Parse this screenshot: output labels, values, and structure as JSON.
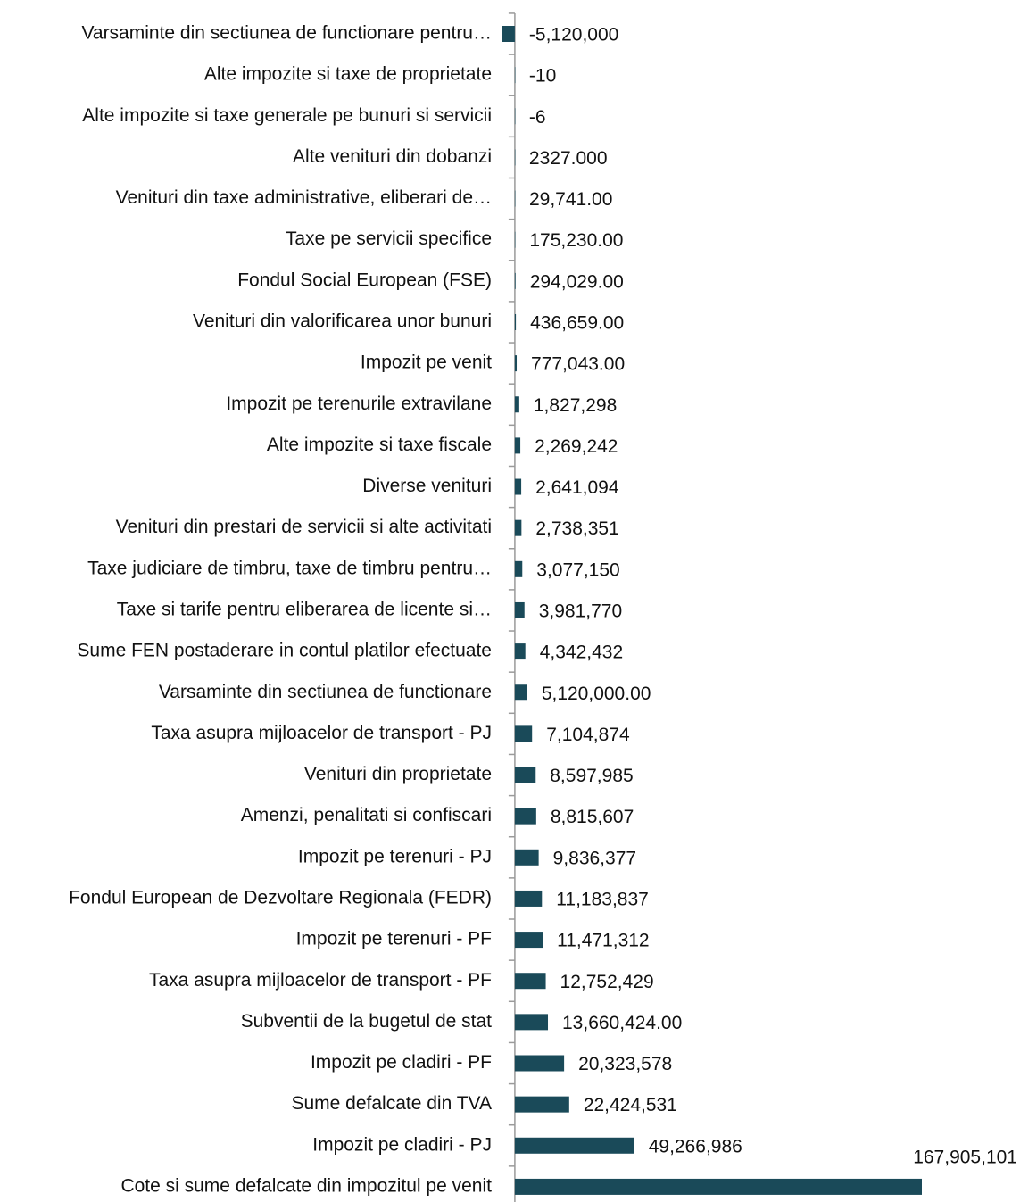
{
  "chart_data": {
    "type": "barh",
    "categories": [
      "Varsaminte din sectiunea de functionare pentru…",
      "Alte impozite si taxe de proprietate",
      "Alte impozite si taxe generale pe bunuri si servicii",
      "Alte venituri din dobanzi",
      "Venituri din taxe administrative, eliberari de…",
      "Taxe pe servicii specifice",
      "Fondul Social European (FSE)",
      "Venituri din valorificarea unor bunuri",
      "Impozit pe venit",
      "Impozit pe terenurile extravilane",
      "Alte impozite si taxe fiscale",
      "Diverse venituri",
      "Venituri din prestari de servicii si alte activitati",
      "Taxe judiciare de timbru, taxe de timbru pentru…",
      "Taxe si tarife pentru eliberarea de licente si…",
      "Sume FEN postaderare in contul platilor efectuate",
      "Varsaminte din sectiunea de functionare",
      "Taxa asupra mijloacelor de transport - PJ",
      "Venituri din proprietate",
      "Amenzi, penalitati si confiscari",
      "Impozit pe terenuri - PJ",
      "Fondul European de Dezvoltare Regionala (FEDR)",
      "Impozit pe terenuri - PF",
      "Taxa asupra mijloacelor de transport - PF",
      "Subventii de la bugetul de stat",
      "Impozit pe cladiri - PF",
      "Sume defalcate din TVA",
      "Impozit pe cladiri - PJ",
      "Cote si sume defalcate din impozitul pe venit"
    ],
    "values": [
      -5120000,
      -10,
      -6,
      2327,
      29741,
      175230,
      294029,
      436659,
      777043,
      1827298,
      2269242,
      2641094,
      2738351,
      3077150,
      3981770,
      4342432,
      5120000,
      7104874,
      8597985,
      8815607,
      9836377,
      11183837,
      11471312,
      12752429,
      13660424,
      20323578,
      22424531,
      49266986,
      167905101
    ],
    "value_labels": [
      "-5,120,000",
      "-10",
      "-6",
      "2327.000",
      "29,741.00",
      "175,230.00",
      "294,029.00",
      "436,659.00",
      "777,043.00",
      "1,827,298",
      "2,269,242",
      "2,641,094",
      "2,738,351",
      "3,077,150",
      "3,981,770",
      "4,342,432",
      "5,120,000.00",
      "7,104,874",
      "8,597,985",
      "8,815,607",
      "9,836,377",
      "11,183,837",
      "11,471,312",
      "12,752,429",
      "13,660,424.00",
      "20,323,578",
      "22,424,531",
      "49,266,986",
      "167,905,101"
    ],
    "color": "#1a4a59",
    "xlim": [
      -5120000,
      167905101
    ]
  }
}
